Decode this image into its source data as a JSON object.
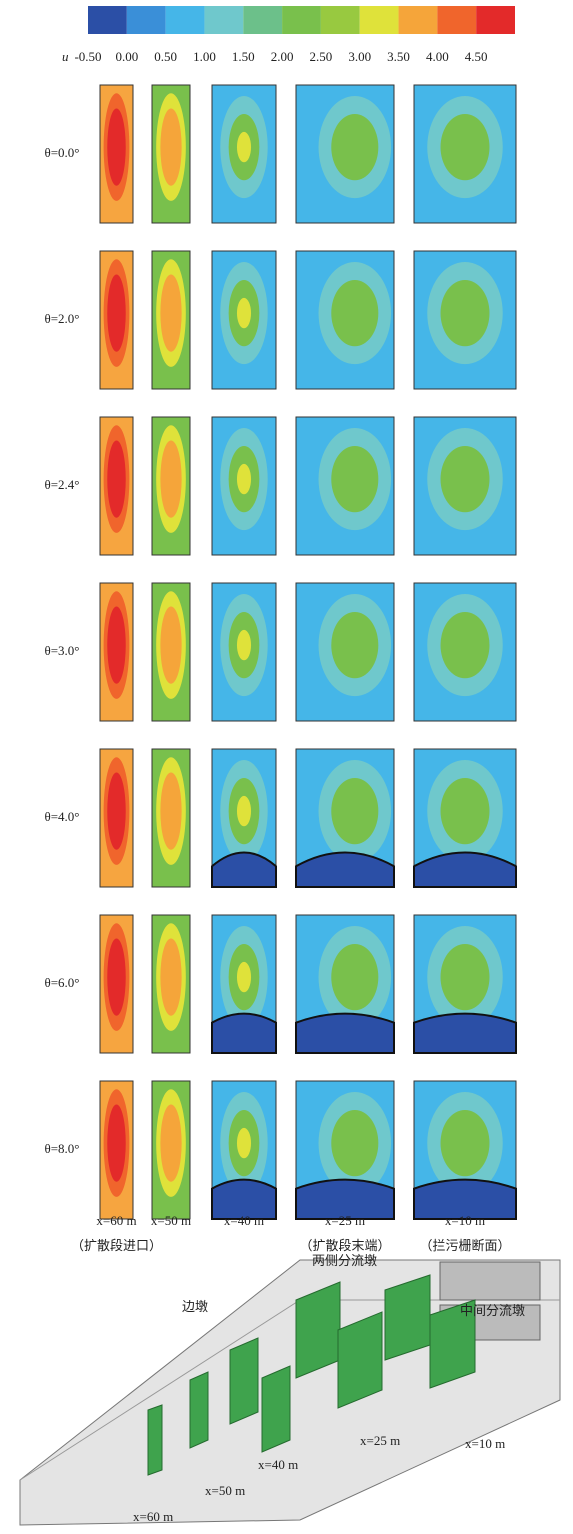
{
  "colorbar": {
    "variable": "u",
    "ticks": [
      "-0.50",
      "0.00",
      "0.50",
      "1.00",
      "1.50",
      "2.00",
      "2.50",
      "3.00",
      "3.50",
      "4.00",
      "4.50"
    ]
  },
  "rows": [
    {
      "label": "θ=0.0°"
    },
    {
      "label": "θ=2.0°"
    },
    {
      "label": "θ=2.4°"
    },
    {
      "label": "θ=3.0°"
    },
    {
      "label": "θ=4.0°"
    },
    {
      "label": "θ=6.0°"
    },
    {
      "label": "θ=8.0°"
    }
  ],
  "columns": [
    {
      "label": "x=60 m",
      "note": "（扩散段进口）"
    },
    {
      "label": "x=50 m"
    },
    {
      "label": "x=40 m"
    },
    {
      "label": "x=25 m",
      "note": "（扩散段末端）"
    },
    {
      "label": "x=10 m",
      "note": "（拦污栅断面）"
    }
  ],
  "diagram": {
    "side_pier": "边墩",
    "side_splitters": "两侧分流墩",
    "middle_splitter": "中间分流墩",
    "sections": [
      "x=25 m",
      "x=10 m",
      "x=40 m",
      "x=50 m",
      "x=60 m"
    ]
  }
}
